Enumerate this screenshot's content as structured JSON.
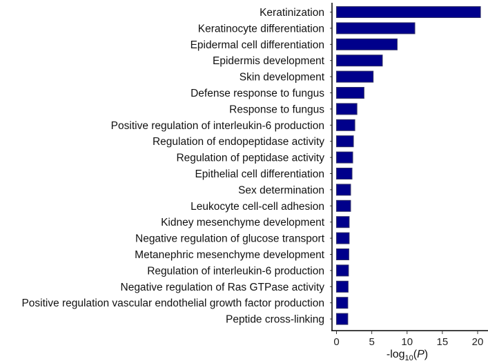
{
  "chart_data": {
    "type": "bar",
    "orientation": "horizontal",
    "categories": [
      "Keratinization",
      "Keratinocyte differentiation",
      "Epidermal cell differentiation",
      "Epidermis development",
      "Skin development",
      "Defense response to fungus",
      "Response to fungus",
      "Positive regulation of interleukin-6 production",
      "Regulation of endopeptidase activity",
      "Regulation of peptidase activity",
      "Epithelial cell differentiation",
      "Sex determination",
      "Leukocyte cell-cell adhesion",
      "Kidney mesenchyme development",
      "Negative regulation of glucose transport",
      "Metanephric mesenchyme development",
      "Regulation of interleukin-6 production",
      "Negative regulation of Ras GTPase activity",
      "Positive regulation vascular endothelial growth factor production",
      "Peptide cross-linking"
    ],
    "values": [
      20.4,
      11.1,
      8.6,
      6.5,
      5.2,
      3.9,
      2.9,
      2.6,
      2.4,
      2.3,
      2.2,
      2.0,
      2.0,
      1.8,
      1.8,
      1.75,
      1.7,
      1.65,
      1.6,
      1.6
    ],
    "xlabel": "-log10(P)",
    "xlabel_parts": {
      "prefix": "-log",
      "subscript": "10",
      "open": "(",
      "italic": "P",
      "close": ")"
    },
    "xlim": [
      0,
      21
    ],
    "xticks": [
      0,
      5,
      10,
      15,
      20
    ],
    "grid": false,
    "bar_color": "#00008B",
    "bar_edge_color": "#333366"
  }
}
